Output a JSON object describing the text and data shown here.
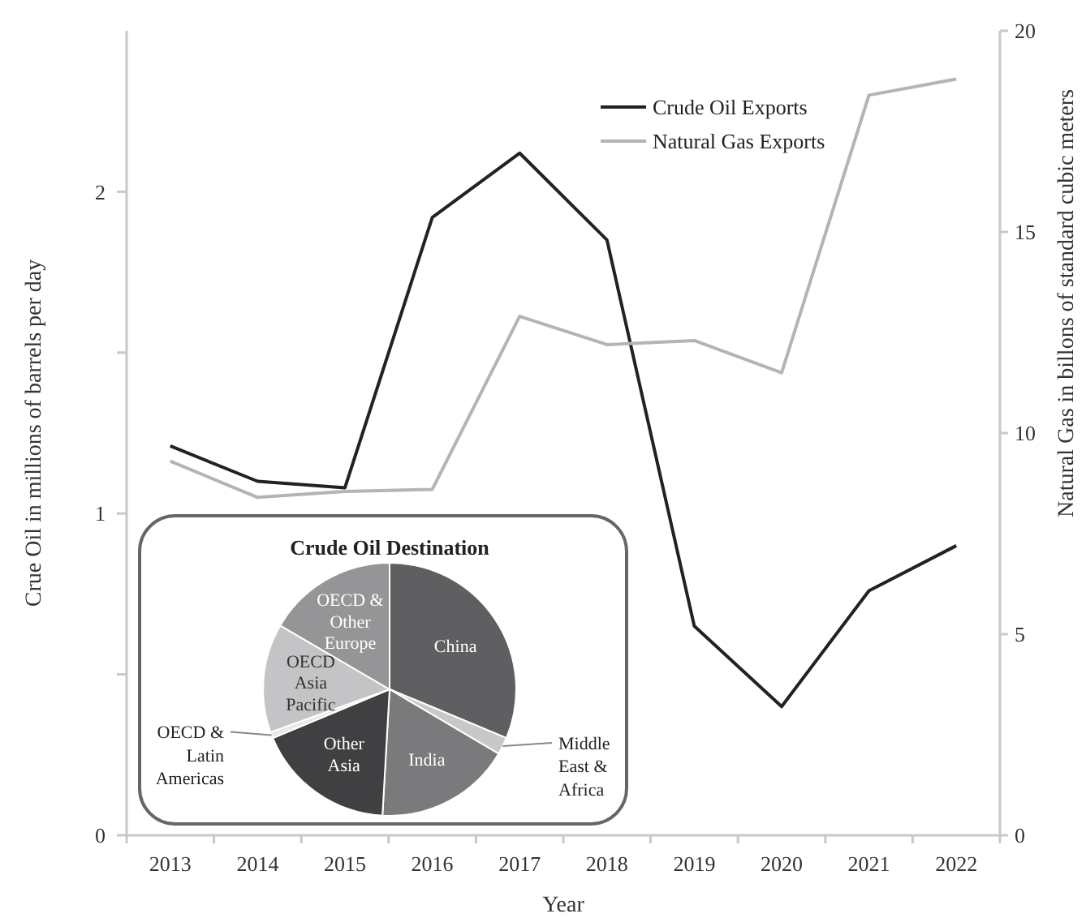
{
  "chart_data": [
    {
      "type": "line",
      "xlabel": "Year",
      "ylabel": "Crue Oil in millions of barrels per day",
      "y2label": "Natural Gas in billons of standard cubic meters",
      "categories": [
        "2013",
        "2014",
        "2015",
        "2016",
        "2017",
        "2018",
        "2019",
        "2020",
        "2021",
        "2022"
      ],
      "series": [
        {
          "name": "Crude Oil Exports",
          "color": "#222222",
          "values": [
            1.21,
            1.1,
            1.08,
            1.92,
            2.12,
            1.85,
            0.65,
            0.4,
            0.76,
            0.9
          ]
        },
        {
          "name": "Natural Gas Exports",
          "color": "#b4b4b4",
          "axis": "y2",
          "values": [
            9.3,
            8.4,
            8.55,
            8.6,
            12.9,
            12.2,
            12.3,
            11.5,
            18.4,
            18.8
          ]
        }
      ],
      "ylim": [
        0,
        2.5
      ],
      "yticks": [
        0,
        {
          "value": 0.5,
          "label": null
        },
        1,
        {
          "value": 1.5,
          "label": null
        },
        2
      ],
      "y2lim": [
        0,
        20
      ],
      "y2ticks": [
        0,
        5,
        10,
        15,
        20
      ],
      "legend": "top right",
      "grid": false,
      "line_style": "solid",
      "marker": "none"
    },
    {
      "type": "pie",
      "title": "Crude Oil Destination",
      "categories": [
        "China",
        "Middle East & Africa",
        "India",
        "Other Asia",
        "OECD & Latin Americas",
        "OECD Asia Pacific",
        "OECD & Other Europe"
      ],
      "values": [
        31.3,
        2.2,
        17.4,
        17.8,
        0.8,
        13.9,
        16.6
      ],
      "colors": [
        "#5f5f61",
        "#c8c8c8",
        "#7a7a7c",
        "#404042",
        "#e8e8e8",
        "#c4c4c6",
        "#959597"
      ]
    }
  ]
}
